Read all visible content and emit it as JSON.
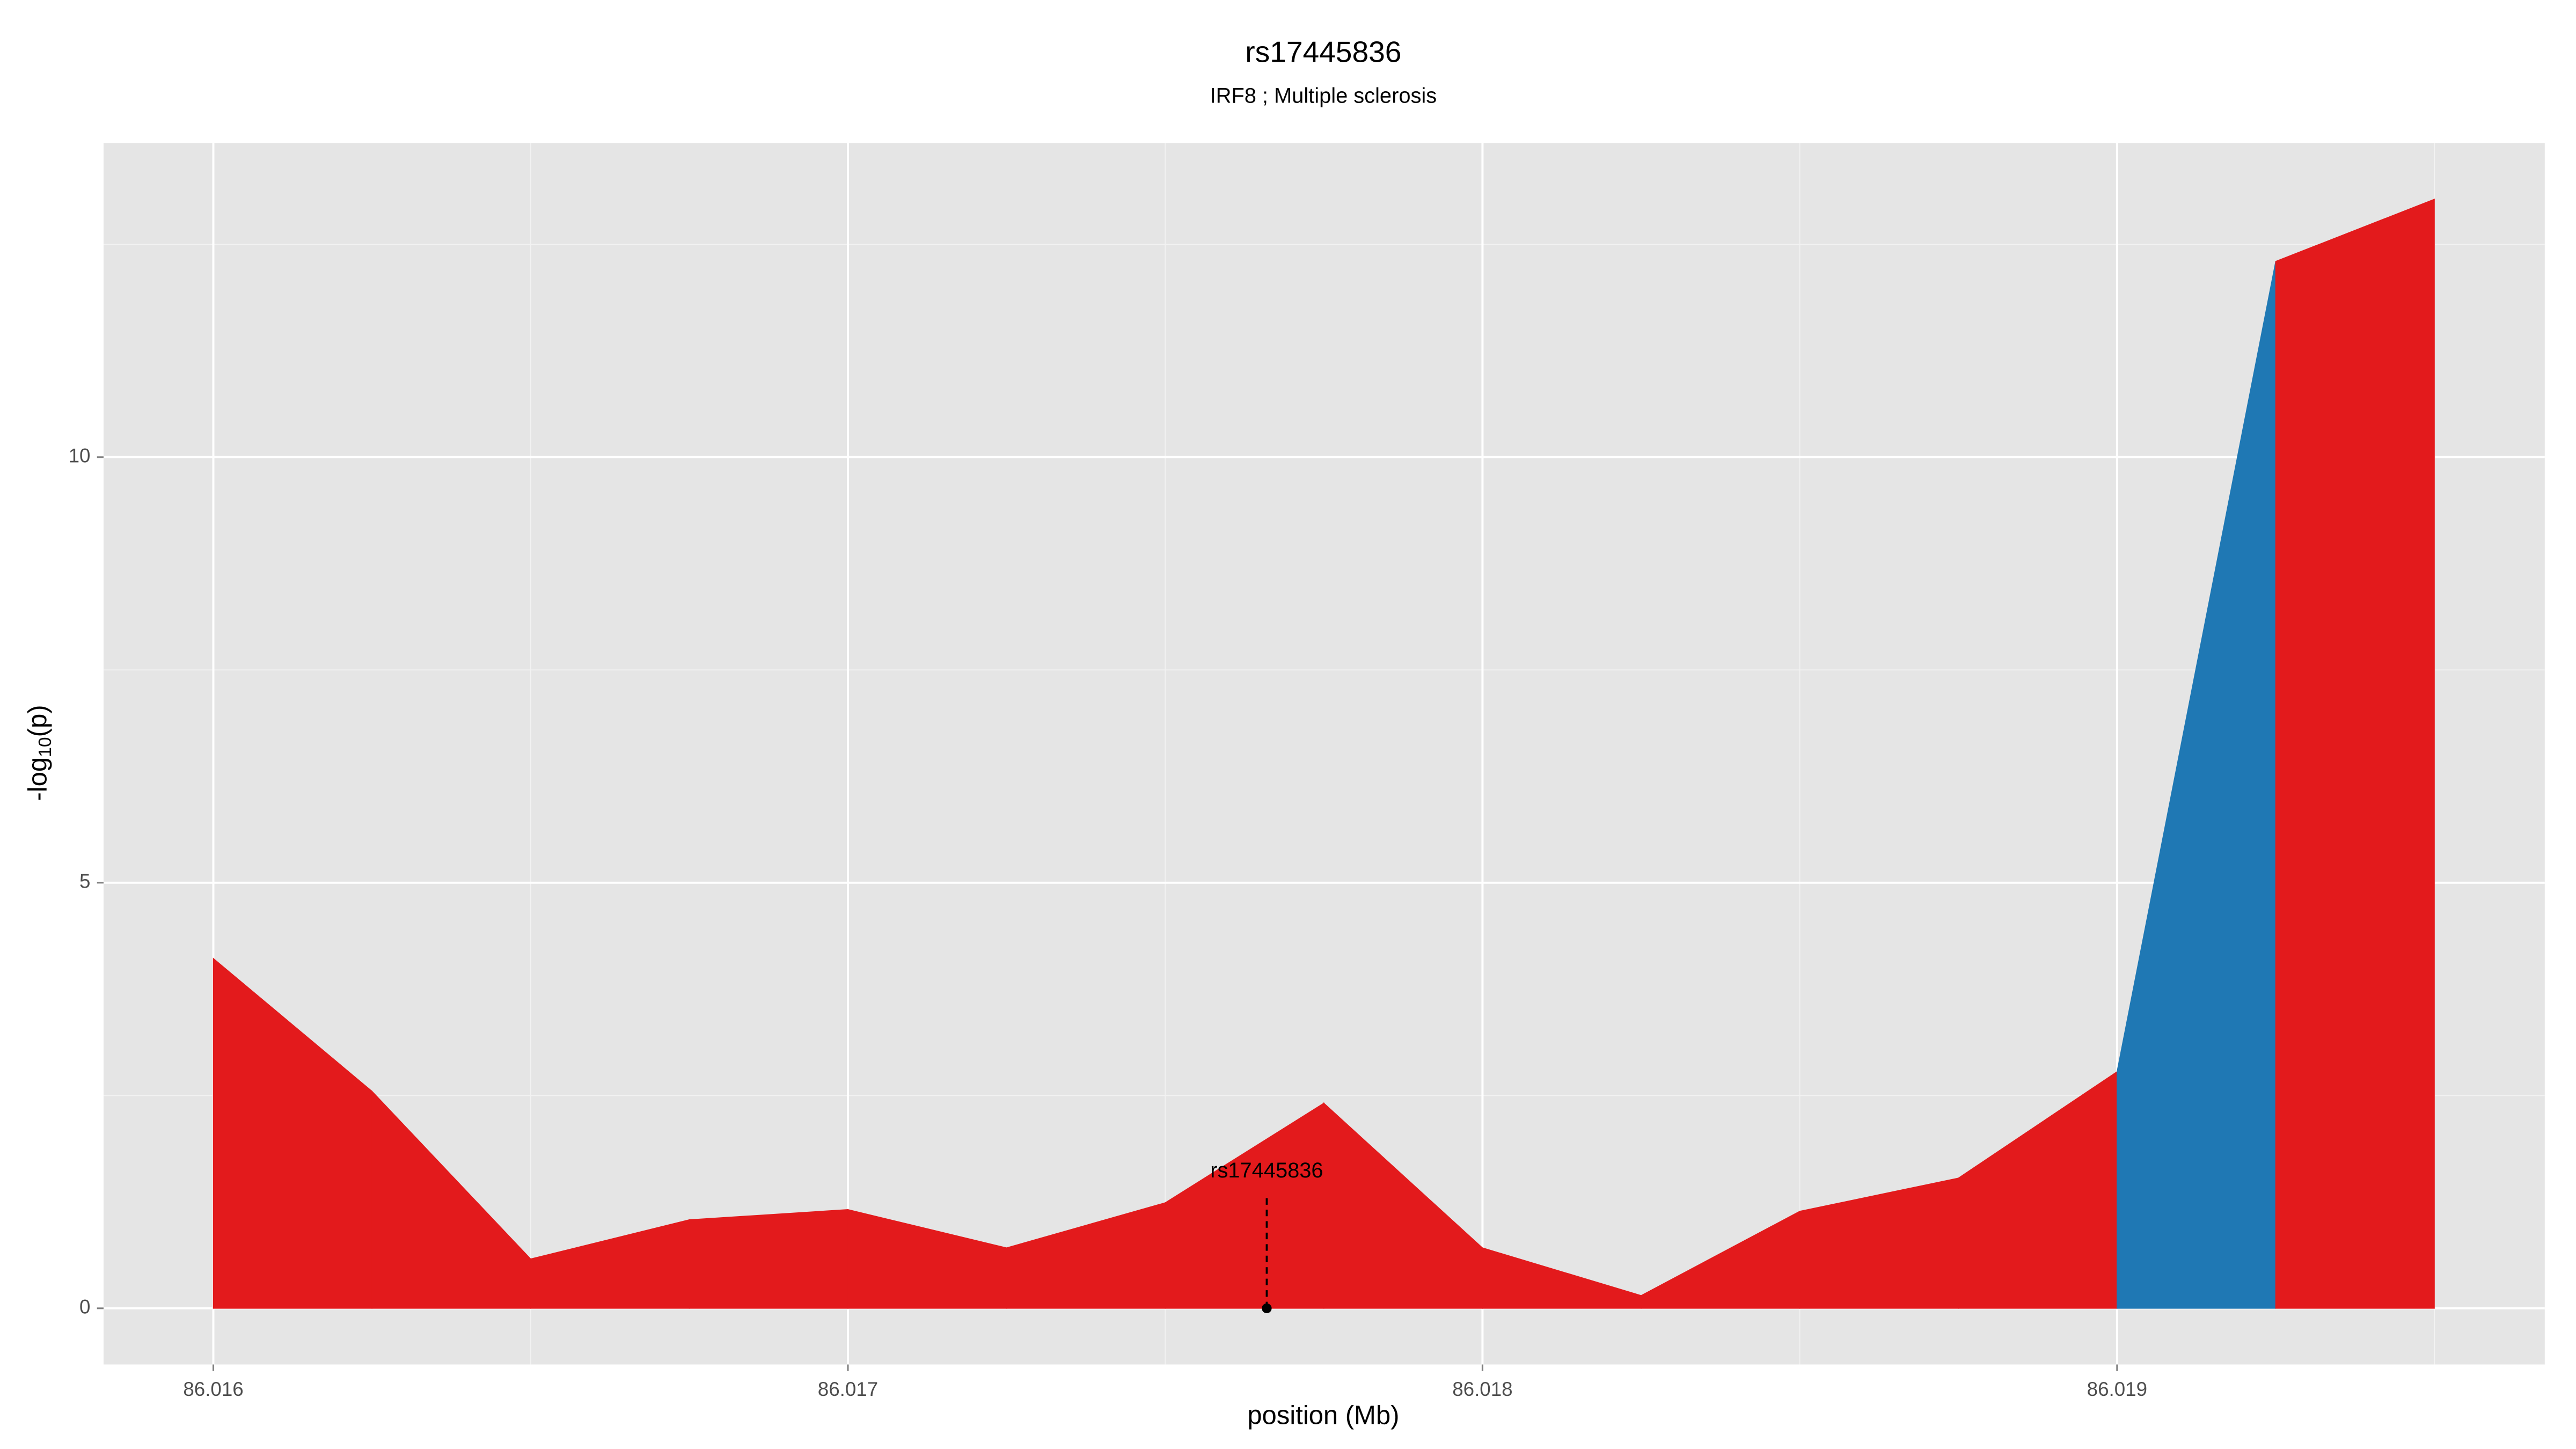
{
  "chart_data": {
    "type": "area",
    "title": "rs17445836",
    "subtitle": "IRF8 ; Multiple sclerosis",
    "xlabel": "position (Mb)",
    "ylabel": [
      "-log",
      "10",
      "(p)"
    ],
    "x": [
      86.016,
      86.01625,
      86.0165,
      86.01675,
      86.017,
      86.01725,
      86.0175,
      86.01775,
      86.018,
      86.01825,
      86.0185,
      86.01875,
      86.019,
      86.01925,
      86.0195
    ],
    "values": [
      4.11,
      2.55,
      0.58,
      1.04,
      1.16,
      0.71,
      1.24,
      2.41,
      0.71,
      0.15,
      1.14,
      1.53,
      2.78,
      12.3,
      13.03
    ],
    "segment_colors": [
      "#e31a1c",
      "#e31a1c",
      "#e31a1c",
      "#e31a1c",
      "#e31a1c",
      "#e31a1c",
      "#e31a1c",
      "#e31a1c",
      "#e31a1c",
      "#e31a1c",
      "#e31a1c",
      "#e31a1c",
      "#1f78b4",
      "#e31a1c"
    ],
    "annotation": {
      "label": "rs17445836",
      "x": 86.01766
    },
    "xlim": [
      86.015827,
      86.019674
    ],
    "ylim": [
      -0.66,
      13.69
    ],
    "xticks": [
      86.016,
      86.017,
      86.018,
      86.019
    ],
    "yticks": [
      0,
      5,
      10
    ],
    "xminor": [
      86.0165,
      86.0175,
      86.0185,
      86.0195
    ],
    "yminor": [
      2.5,
      7.5,
      12.5
    ],
    "grid": true
  }
}
